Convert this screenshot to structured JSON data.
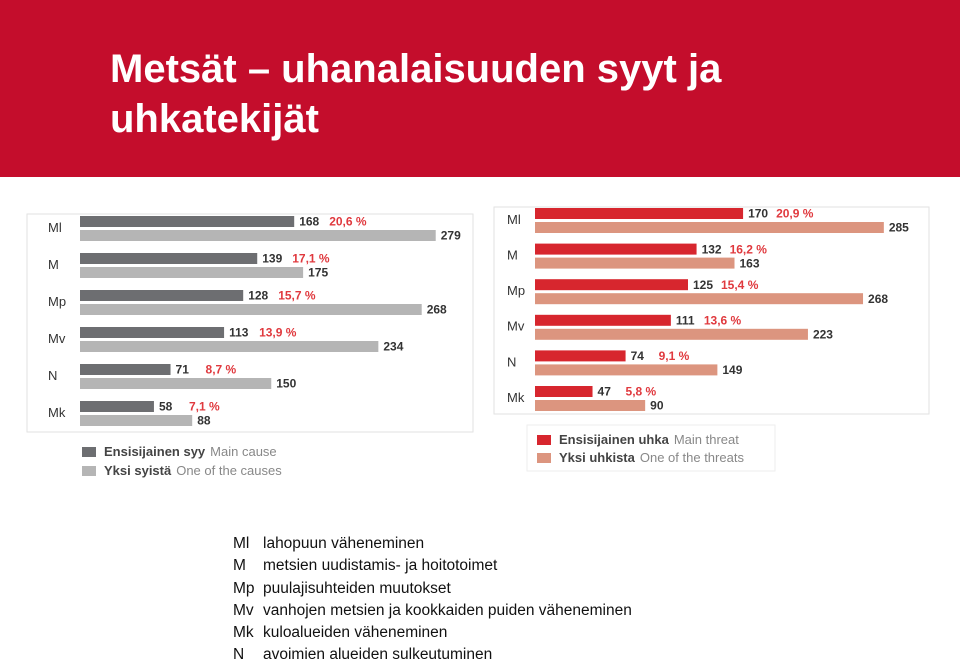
{
  "header": {
    "title": "Metsät – uhanalaisuuden syyt ja uhkatekijät"
  },
  "chart_data": [
    {
      "type": "bar",
      "orientation": "horizontal",
      "categories": [
        "Ml",
        "M",
        "Mp",
        "Mv",
        "N",
        "Mk"
      ],
      "series": [
        {
          "name": "Ensisijainen syy",
          "name_en": "Main cause",
          "color": "#6d6e71",
          "values": [
            168,
            139,
            128,
            113,
            71,
            58
          ],
          "shares": [
            {
              "value": 20.6,
              "label": "20,6 %"
            },
            {
              "value": 17.1,
              "label": "17,1 %"
            },
            {
              "value": 15.7,
              "label": "15,7 %"
            },
            {
              "value": 13.9,
              "label": "13,9 %"
            },
            {
              "value": 8.7,
              "label": "8,7 %"
            },
            {
              "value": 7.1,
              "label": "7,1 %"
            }
          ]
        },
        {
          "name": "Yksi syistä",
          "name_en": "One of the causes",
          "color": "#b5b5b5",
          "values": [
            279,
            175,
            268,
            234,
            150,
            88
          ]
        }
      ]
    },
    {
      "type": "bar",
      "orientation": "horizontal",
      "categories": [
        "Ml",
        "M",
        "Mp",
        "Mv",
        "N",
        "Mk"
      ],
      "series": [
        {
          "name": "Ensisijainen uhka",
          "name_en": "Main threat",
          "color": "#d7262e",
          "values": [
            170,
            132,
            125,
            111,
            74,
            47
          ],
          "shares": [
            {
              "value": 20.9,
              "label": "20,9 %"
            },
            {
              "value": 16.2,
              "label": "16,2 %"
            },
            {
              "value": 15.4,
              "label": "15,4 %"
            },
            {
              "value": 13.6,
              "label": "13,6 %"
            },
            {
              "value": 9.1,
              "label": "9,1 %"
            },
            {
              "value": 5.8,
              "label": "5,8 %"
            }
          ]
        },
        {
          "name": "Yksi uhkista",
          "name_en": "One of the threats",
          "color": "#dc957f",
          "values": [
            285,
            163,
            268,
            223,
            149,
            90
          ]
        }
      ]
    }
  ],
  "abbreviations": [
    {
      "code": "Ml",
      "text": "lahopuun väheneminen"
    },
    {
      "code": "M",
      "text": "metsien uudistamis- ja hoitotoimet"
    },
    {
      "code": "Mp",
      "text": "puulajisuhteiden muutokset"
    },
    {
      "code": "Mv",
      "text": "vanhojen metsien ja kookkaiden puiden väheneminen"
    },
    {
      "code": "Mk",
      "text": "kuloalueiden väheneminen"
    },
    {
      "code": "N",
      "text": "avoimien alueiden sulkeutuminen"
    }
  ]
}
